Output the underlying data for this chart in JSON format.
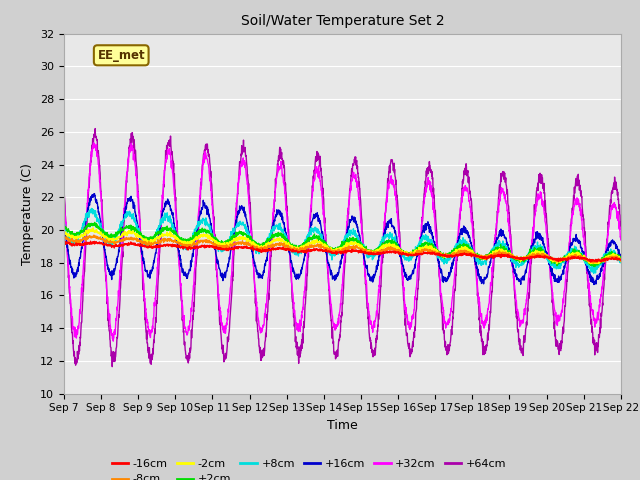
{
  "title": "Soil/Water Temperature Set 2",
  "xlabel": "Time",
  "ylabel": "Temperature (C)",
  "ylim": [
    10,
    32
  ],
  "yticks": [
    10,
    12,
    14,
    16,
    18,
    20,
    22,
    24,
    26,
    28,
    30,
    32
  ],
  "xtick_labels": [
    "Sep 7",
    "Sep 8",
    "Sep 9",
    "Sep 10",
    "Sep 11",
    "Sep 12",
    "Sep 13",
    "Sep 14",
    "Sep 15",
    "Sep 16",
    "Sep 17",
    "Sep 18",
    "Sep 19",
    "Sep 20",
    "Sep 21",
    "Sep 22"
  ],
  "series_colors": {
    "-16cm": "#ff0000",
    "-8cm": "#ff8800",
    "-2cm": "#ffff00",
    "+2cm": "#00dd00",
    "+8cm": "#00dddd",
    "+16cm": "#0000cc",
    "+32cm": "#ff00ff",
    "+64cm": "#aa00aa"
  },
  "watermark_text": "EE_met",
  "watermark_bg": "#ffff99",
  "watermark_border": "#886600",
  "plot_bg": "#e8e8e8",
  "fig_bg": "#d0d0d0",
  "grid_color": "#ffffff"
}
